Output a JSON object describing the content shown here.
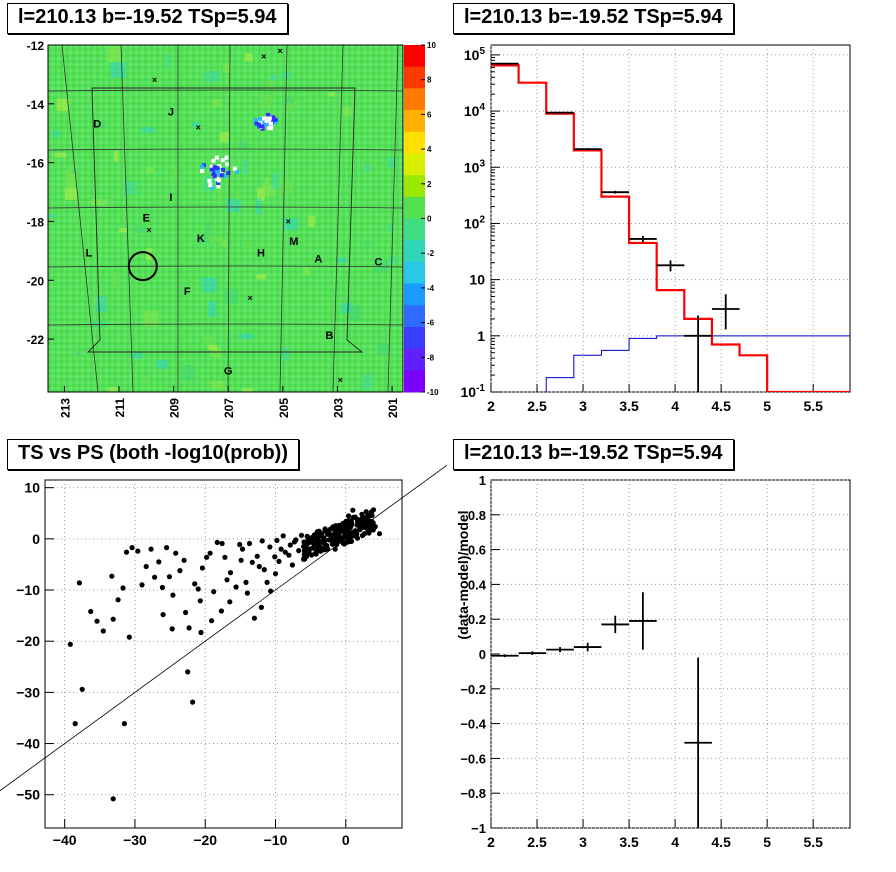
{
  "titles": {
    "map": "l=210.13 b=-19.52 TSp=5.94",
    "spectrum": "l=210.13 b=-19.52 TSp=5.94",
    "scatter": "TS vs PS (both -log10(prob))",
    "residual": "l=210.13 b=-19.52 TSp=5.94"
  },
  "chart_data": [
    {
      "type": "heatmap",
      "xlabel": "",
      "ylabel": "",
      "x_ticks": [
        "213",
        "211",
        "209",
        "207",
        "205",
        "203",
        "201"
      ],
      "y_ticks": [
        "-12",
        "-14",
        "-16",
        "-18",
        "-20",
        "-22"
      ],
      "xlim": [
        213.6,
        200.6
      ],
      "ylim": [
        -23.8,
        -12
      ],
      "colorbar_ticks": [
        10,
        8,
        6,
        4,
        2,
        0,
        -2,
        -4,
        -6,
        -8,
        -10
      ],
      "colorbar_range": [
        -10,
        10
      ],
      "region_labels": [
        {
          "text": "D",
          "l": 211.8,
          "b": -14.8
        },
        {
          "text": "J",
          "l": 209.1,
          "b": -14.4
        },
        {
          "text": "I",
          "l": 209.1,
          "b": -17.3
        },
        {
          "text": "E",
          "l": 210.0,
          "b": -18.0
        },
        {
          "text": "K",
          "l": 208.0,
          "b": -18.7
        },
        {
          "text": "L",
          "l": 212.1,
          "b": -19.2
        },
        {
          "text": "H",
          "l": 205.8,
          "b": -19.2
        },
        {
          "text": "M",
          "l": 204.6,
          "b": -18.8
        },
        {
          "text": "A",
          "l": 203.7,
          "b": -19.4
        },
        {
          "text": "C",
          "l": 201.5,
          "b": -19.5
        },
        {
          "text": "F",
          "l": 208.5,
          "b": -20.5
        },
        {
          "text": "B",
          "l": 203.3,
          "b": -22.0
        },
        {
          "text": "G",
          "l": 207.0,
          "b": -23.2
        }
      ],
      "markers_x": [
        {
          "l": 209.7,
          "b": -13.3
        },
        {
          "l": 205.7,
          "b": -12.5
        },
        {
          "l": 205.1,
          "b": -12.3
        },
        {
          "l": 206.5,
          "b": -12.0
        },
        {
          "l": 208.1,
          "b": -14.9
        },
        {
          "l": 209.9,
          "b": -18.4
        },
        {
          "l": 204.8,
          "b": -18.1
        },
        {
          "l": 206.2,
          "b": -20.7
        },
        {
          "l": 202.9,
          "b": -23.5
        }
      ],
      "circle": {
        "l": 210.13,
        "b": -19.52
      },
      "hot_spots": [
        {
          "l": 205.6,
          "b": -14.6,
          "value": -10
        },
        {
          "l": 207.4,
          "b": -16.3,
          "value": -10
        }
      ]
    },
    {
      "type": "line",
      "x_ticks": [
        2,
        2.5,
        3,
        3.5,
        4,
        4.5,
        5,
        5.5
      ],
      "y_ticks": [
        "10^{-1}",
        "1",
        "10",
        "10^{2}",
        "10^{3}",
        "10^{4}",
        "10^{5}"
      ],
      "xlim": [
        2,
        5.9
      ],
      "ylim": [
        0.1,
        150000
      ],
      "log_y": true,
      "bin_edges": [
        2,
        2.3,
        2.6,
        2.9,
        3.2,
        3.5,
        3.8,
        4.1,
        4.4,
        4.7,
        5.0,
        5.9
      ],
      "series": [
        {
          "values": [
            65000,
            32000,
            9000,
            2000,
            300,
            45,
            6.5,
            2,
            0.7,
            0.45,
            0.1
          ],
          "color": "#ff0000"
        },
        {
          "values": [
            0.05,
            0.05,
            0.18,
            0.45,
            0.55,
            0.9,
            1,
            1,
            1,
            1,
            1
          ],
          "color": "#0000cc"
        }
      ],
      "points": [
        {
          "x": 2.15,
          "y": 70000,
          "xerr": 0.15,
          "ylo": 69000,
          "yhi": 71000
        },
        {
          "x": 2.75,
          "y": 9400,
          "xerr": 0.15,
          "ylo": 9200,
          "yhi": 9600
        },
        {
          "x": 3.05,
          "y": 2100,
          "xerr": 0.15,
          "ylo": 2000,
          "yhi": 2200
        },
        {
          "x": 3.35,
          "y": 360,
          "xerr": 0.15,
          "ylo": 340,
          "yhi": 380
        },
        {
          "x": 3.65,
          "y": 53,
          "xerr": 0.15,
          "ylo": 46,
          "yhi": 60
        },
        {
          "x": 3.95,
          "y": 18,
          "xerr": 0.15,
          "ylo": 14,
          "yhi": 22
        },
        {
          "x": 4.25,
          "y": 1,
          "xerr": 0.15,
          "ylo": 0.1,
          "yhi": 2.3
        },
        {
          "x": 4.55,
          "y": 3,
          "xerr": 0.15,
          "ylo": 1.3,
          "yhi": 5.5
        }
      ]
    },
    {
      "type": "scatter",
      "x_ticks": [
        -40,
        -30,
        -20,
        -10,
        0
      ],
      "y_ticks": [
        10,
        0,
        -10,
        -20,
        -30,
        -40,
        -50
      ],
      "xlim": [
        -42.8,
        8
      ],
      "ylim": [
        -56.5,
        11.5
      ],
      "diagonal": {
        "x0": -42.8,
        "x1": 8
      },
      "points": [
        [
          -33.1,
          -50.8
        ],
        [
          -31.5,
          -36.1
        ],
        [
          -38.5,
          -36.1
        ],
        [
          -39.2,
          -20.6
        ],
        [
          -37.5,
          -29.4
        ],
        [
          -21.8,
          -31.9
        ],
        [
          -22.5,
          -26.0
        ],
        [
          -37.9,
          -8.6
        ],
        [
          -36.3,
          -14.2
        ],
        [
          -35.4,
          -16.1
        ],
        [
          -34.5,
          -18.0
        ],
        [
          -33.1,
          -15.7
        ],
        [
          -32.4,
          -11.9
        ],
        [
          -31.7,
          -9.6
        ],
        [
          -30.8,
          -19.2
        ],
        [
          -33.3,
          -7.3
        ],
        [
          -31.2,
          -2.6
        ],
        [
          -30.4,
          -1.7
        ],
        [
          -29.6,
          -2.4
        ],
        [
          -27.7,
          -2.0
        ],
        [
          -25.5,
          -1.7
        ],
        [
          -24.2,
          -2.8
        ],
        [
          -23.0,
          -4.2
        ],
        [
          -28.4,
          -5.4
        ],
        [
          -27.2,
          -7.5
        ],
        [
          -26.1,
          -9.5
        ],
        [
          -24.6,
          -11.0
        ],
        [
          -22.8,
          -14.4
        ],
        [
          -26.0,
          -14.8
        ],
        [
          -24.7,
          -17.6
        ],
        [
          -22.3,
          -17.4
        ],
        [
          -20.6,
          -18.3
        ],
        [
          -19.1,
          -16.0
        ],
        [
          -17.7,
          -14.1
        ],
        [
          -16.5,
          -12.3
        ],
        [
          -14.2,
          -8.5
        ],
        [
          -11.6,
          -6.0
        ],
        [
          -9.5,
          -4.4
        ],
        [
          -8.1,
          -3.2
        ],
        [
          -13.0,
          -15.5
        ],
        [
          -12.0,
          -13.4
        ],
        [
          -10.7,
          -10.2
        ],
        [
          -21.5,
          -8.8
        ],
        [
          -20.4,
          -5.7
        ],
        [
          -19.3,
          -2.8
        ],
        [
          -18.3,
          -0.7
        ],
        [
          -17.2,
          -3.6
        ],
        [
          -16.4,
          -6.6
        ],
        [
          -15.6,
          -9.4
        ],
        [
          -14.7,
          -2.0
        ],
        [
          -13.7,
          -0.9
        ],
        [
          -12.6,
          -3.4
        ],
        [
          -11.9,
          -0.4
        ],
        [
          -10.8,
          -1.6
        ],
        [
          -9.8,
          -0.3
        ],
        [
          -8.9,
          0.6
        ],
        [
          -7.9,
          -1.2
        ],
        [
          -7.1,
          -0.2
        ],
        [
          -6.3,
          0.7
        ],
        [
          -5.4,
          -0.9
        ],
        [
          -4.6,
          0.4
        ],
        [
          -3.8,
          1.5
        ],
        [
          -3.1,
          0.2
        ],
        [
          -2.4,
          1.1
        ],
        [
          -1.8,
          -0.4
        ],
        [
          -1.2,
          0.8
        ],
        [
          -0.6,
          2.1
        ],
        [
          0.0,
          1.2
        ],
        [
          0.5,
          3.0
        ],
        [
          1.1,
          4.2
        ],
        [
          1.7,
          3.4
        ],
        [
          2.3,
          4.8
        ],
        [
          2.9,
          5.3
        ],
        [
          3.6,
          4.9
        ],
        [
          4.2,
          2.4
        ],
        [
          4.8,
          1.0
        ],
        [
          0.8,
          -0.5
        ],
        [
          -0.2,
          -1.0
        ],
        [
          1.4,
          0.7
        ],
        [
          2.0,
          2.0
        ],
        [
          2.6,
          3.0
        ],
        [
          3.2,
          3.6
        ],
        [
          1.0,
          5.6
        ],
        [
          0.4,
          4.5
        ],
        [
          -0.4,
          3.0
        ],
        [
          -1.5,
          -2.0
        ],
        [
          -2.7,
          -1.3
        ],
        [
          -4.2,
          -2.5
        ],
        [
          -5.9,
          -3.0
        ],
        [
          -7.6,
          -5.1
        ],
        [
          -9.2,
          -2.0
        ],
        [
          -12.3,
          -5.4
        ],
        [
          -14.9,
          -4.2
        ],
        [
          -16.9,
          -8.0
        ],
        [
          -18.8,
          -10.3
        ],
        [
          -20.7,
          -12.1
        ],
        [
          -11.2,
          -8.5
        ],
        [
          -6.7,
          -2.3
        ],
        [
          -3.4,
          -1.8
        ],
        [
          -0.8,
          -0.1
        ],
        [
          2.8,
          4.0
        ],
        [
          3.9,
          3.1
        ],
        [
          -1.0,
          0.3
        ],
        [
          -2.0,
          0.5
        ],
        [
          -0.3,
          0.4
        ],
        [
          0.2,
          1.8
        ],
        [
          1.6,
          2.7
        ],
        [
          2.2,
          3.8
        ],
        [
          0.7,
          2.6
        ],
        [
          -0.5,
          1.5
        ],
        [
          -1.4,
          1.0
        ],
        [
          -2.6,
          0.9
        ],
        [
          -3.7,
          -0.6
        ],
        [
          -5.0,
          0.0
        ],
        [
          -6.0,
          -1.5
        ],
        [
          -7.3,
          -0.6
        ],
        [
          -8.6,
          -2.6
        ],
        [
          -10.1,
          -3.5
        ],
        [
          -13.3,
          -4.6
        ],
        [
          -15.1,
          -1.1
        ],
        [
          -17.6,
          -0.9
        ],
        [
          -19.8,
          -3.6
        ],
        [
          -23.6,
          -6.2
        ],
        [
          -26.6,
          -4.5
        ],
        [
          -29.0,
          -9.0
        ],
        [
          -25.1,
          -7.4
        ],
        [
          -21.0,
          -9.8
        ],
        [
          -14.0,
          -10.6
        ],
        [
          -10.0,
          -6.8
        ],
        [
          -6.0,
          -4.0
        ],
        [
          -4.0,
          -1.4
        ]
      ]
    },
    {
      "type": "scatter",
      "ylabel": "(data-model)/model",
      "x_ticks": [
        2,
        2.5,
        3,
        3.5,
        4,
        4.5,
        5,
        5.5
      ],
      "y_ticks": [
        1,
        0.8,
        0.6,
        0.4,
        0.2,
        0,
        -0.2,
        -0.4,
        -0.6,
        -0.8,
        -1
      ],
      "xlim": [
        2,
        5.9
      ],
      "ylim": [
        -1,
        1
      ],
      "points": [
        {
          "x": 2.15,
          "y": -0.01,
          "xerr": 0.15,
          "yerr": 0.008
        },
        {
          "x": 2.45,
          "y": 0.005,
          "xerr": 0.15,
          "yerr": 0.01
        },
        {
          "x": 2.75,
          "y": 0.025,
          "xerr": 0.15,
          "yerr": 0.015
        },
        {
          "x": 3.05,
          "y": 0.04,
          "xerr": 0.15,
          "yerr": 0.025
        },
        {
          "x": 3.35,
          "y": 0.17,
          "xerr": 0.15,
          "yerr": 0.05
        },
        {
          "x": 3.65,
          "y": 0.19,
          "xerr": 0.15,
          "yerr": 0.165
        },
        {
          "x": 4.25,
          "y": -0.51,
          "xerr": 0.15,
          "yerr": 0.49
        }
      ]
    }
  ]
}
